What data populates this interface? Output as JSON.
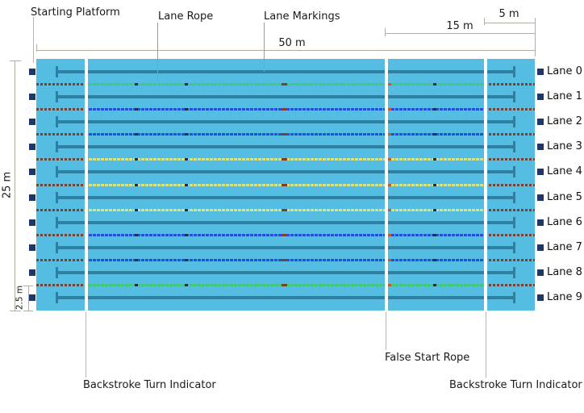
{
  "annotations": {
    "starting_platform": "Starting Platform",
    "lane_rope": "Lane Rope",
    "lane_markings": "Lane Markings",
    "false_start_rope": "False Start Rope",
    "backstroke_turn_indicator_left": "Backstroke Turn Indicator",
    "backstroke_turn_indicator_right": "Backstroke Turn Indicator"
  },
  "dimensions": {
    "pool_length": "50 m",
    "false_start_rope_distance": "15 m",
    "backstroke_indicator_distance": "5 m",
    "pool_width": "25 m",
    "lane_width": "2.5 m"
  },
  "lanes": [
    "Lane 0",
    "Lane 1",
    "Lane 2",
    "Lane 3",
    "Lane 4",
    "Lane 5",
    "Lane 6",
    "Lane 7",
    "Lane 8",
    "Lane 9"
  ],
  "lane_rope_colors": [
    "green",
    "blue",
    "blue",
    "yellow",
    "yellow",
    "yellow",
    "blue",
    "blue",
    "green"
  ],
  "colors": {
    "pool_water": "#55bde2",
    "lane_bottom_marking": "#2e7fa0",
    "starting_platform_marker": "#1f3766",
    "rope_green": "#3ecb74",
    "rope_blue": "#2050e0",
    "rope_yellow": "#d8e47e",
    "rope_end_red": "#7d3f2e",
    "indicator_line_white": "#ffffff"
  }
}
